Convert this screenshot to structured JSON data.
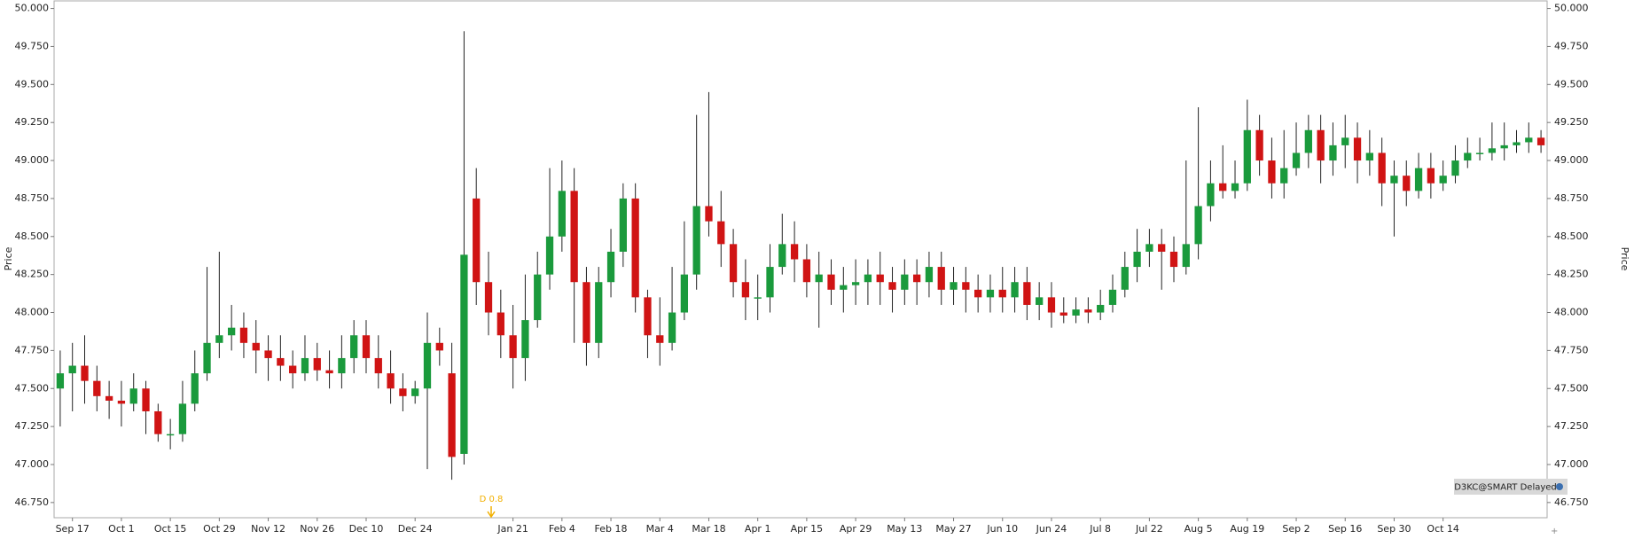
{
  "chart_data": {
    "type": "candlestick",
    "y_axis_label": "Price",
    "y2_axis_label": "Price",
    "annotation": "D 0.8",
    "badge": "D3KC@SMART Delayed",
    "up_color": "#1a9a3c",
    "down_color": "#d01414",
    "ylim": [
      46.65,
      50.05
    ],
    "yticks": [
      {
        "value": 46.75,
        "label": "46.750"
      },
      {
        "value": 47,
        "label": "47.000"
      },
      {
        "value": 47.25,
        "label": "47.250"
      },
      {
        "value": 47.5,
        "label": "47.500"
      },
      {
        "value": 47.75,
        "label": "47.750"
      },
      {
        "value": 48,
        "label": "48.000"
      },
      {
        "value": 48.25,
        "label": "48.250"
      },
      {
        "value": 48.5,
        "label": "48.500"
      },
      {
        "value": 48.75,
        "label": "48.750"
      },
      {
        "value": 49,
        "label": "49.000"
      },
      {
        "value": 49.25,
        "label": "49.250"
      },
      {
        "value": 49.5,
        "label": "49.500"
      },
      {
        "value": 49.75,
        "label": "49.750"
      },
      {
        "value": 50,
        "label": "50.000"
      }
    ],
    "categories": [
      null,
      "Sep 17",
      null,
      null,
      null,
      "Oct 1",
      null,
      null,
      null,
      "Oct 15",
      null,
      null,
      null,
      "Oct 29",
      null,
      null,
      null,
      "Nov 12",
      null,
      null,
      null,
      "Nov 26",
      null,
      null,
      null,
      "Dec 10",
      null,
      null,
      null,
      "Dec 24",
      null,
      null,
      null,
      null,
      null,
      null,
      null,
      "Jan 21",
      null,
      null,
      null,
      "Feb 4",
      null,
      null,
      null,
      "Feb 18",
      null,
      null,
      null,
      "Mar 4",
      null,
      null,
      null,
      "Mar 18",
      null,
      null,
      null,
      "Apr 1",
      null,
      null,
      null,
      "Apr 15",
      null,
      null,
      null,
      "Apr 29",
      null,
      null,
      null,
      "May 13",
      null,
      null,
      null,
      "May 27",
      null,
      null,
      null,
      "Jun 10",
      null,
      null,
      null,
      "Jun 24",
      null,
      null,
      null,
      "Jul 8",
      null,
      null,
      null,
      "Jul 22",
      null,
      null,
      null,
      "Aug 5",
      null,
      null,
      null,
      "Aug 19",
      null,
      null,
      null,
      "Sep 2",
      null,
      null,
      null,
      "Sep 16",
      null,
      null,
      null,
      "Sep 30",
      null,
      null,
      null,
      "Oct 14",
      null,
      null,
      null,
      null,
      null,
      null,
      null,
      null
    ],
    "open": [
      47.5,
      47.6,
      47.65,
      47.55,
      47.45,
      47.42,
      47.4,
      47.5,
      47.35,
      47.2,
      47.2,
      47.4,
      47.6,
      47.8,
      47.85,
      47.9,
      47.8,
      47.75,
      47.7,
      47.65,
      47.6,
      47.7,
      47.62,
      47.6,
      47.7,
      47.85,
      47.7,
      47.6,
      47.5,
      47.45,
      47.5,
      47.8,
      47.6,
      47.07,
      48.75,
      48.2,
      48.0,
      47.85,
      47.7,
      47.95,
      48.25,
      48.5,
      48.8,
      48.2,
      47.8,
      48.2,
      48.4,
      48.75,
      48.1,
      47.85,
      47.8,
      48.0,
      48.25,
      48.7,
      48.6,
      48.45,
      48.2,
      48.1,
      48.1,
      48.3,
      48.45,
      48.35,
      48.2,
      48.25,
      48.15,
      48.18,
      48.2,
      48.25,
      48.2,
      48.15,
      48.25,
      48.2,
      48.3,
      48.15,
      48.2,
      48.15,
      48.1,
      48.15,
      48.1,
      48.2,
      48.05,
      48.1,
      48.0,
      47.98,
      48.02,
      48.0,
      48.05,
      48.15,
      48.3,
      48.4,
      48.45,
      48.4,
      48.3,
      48.45,
      48.7,
      48.85,
      48.8,
      48.85,
      49.2,
      49.0,
      48.85,
      48.95,
      49.05,
      49.2,
      49.0,
      49.1,
      49.15,
      49.0,
      49.05,
      48.85,
      48.9,
      48.8,
      48.95,
      48.85,
      48.9,
      49.0,
      49.05,
      49.05,
      49.08,
      49.1,
      49.12,
      49.15
    ],
    "high": [
      47.75,
      47.8,
      47.85,
      47.65,
      47.55,
      47.55,
      47.6,
      47.55,
      47.4,
      47.3,
      47.55,
      47.75,
      48.3,
      48.4,
      48.05,
      48.0,
      47.95,
      47.85,
      47.85,
      47.75,
      47.85,
      47.8,
      47.75,
      47.85,
      47.95,
      47.95,
      47.85,
      47.75,
      47.6,
      47.55,
      48.0,
      47.9,
      47.8,
      49.85,
      48.95,
      48.4,
      48.15,
      48.05,
      48.25,
      48.4,
      48.95,
      49.0,
      48.95,
      48.3,
      48.3,
      48.55,
      48.85,
      48.85,
      48.15,
      48.1,
      48.3,
      48.6,
      49.3,
      49.45,
      48.8,
      48.55,
      48.35,
      48.25,
      48.45,
      48.65,
      48.6,
      48.45,
      48.4,
      48.35,
      48.3,
      48.35,
      48.35,
      48.4,
      48.3,
      48.35,
      48.35,
      48.4,
      48.4,
      48.3,
      48.3,
      48.25,
      48.25,
      48.3,
      48.3,
      48.3,
      48.2,
      48.2,
      48.1,
      48.1,
      48.1,
      48.15,
      48.25,
      48.4,
      48.55,
      48.55,
      48.55,
      48.5,
      49.0,
      49.35,
      49.0,
      49.1,
      49.0,
      49.4,
      49.3,
      49.15,
      49.2,
      49.25,
      49.3,
      49.3,
      49.25,
      49.3,
      49.25,
      49.2,
      49.15,
      49.0,
      49.0,
      49.05,
      49.05,
      49.0,
      49.1,
      49.15,
      49.15,
      49.25,
      49.25,
      49.2,
      49.25,
      49.2
    ],
    "low": [
      47.25,
      47.35,
      47.4,
      47.35,
      47.3,
      47.25,
      47.35,
      47.2,
      47.15,
      47.1,
      47.15,
      47.35,
      47.55,
      47.7,
      47.75,
      47.7,
      47.6,
      47.55,
      47.55,
      47.5,
      47.55,
      47.55,
      47.5,
      47.5,
      47.6,
      47.6,
      47.5,
      47.4,
      47.35,
      47.4,
      46.97,
      47.65,
      46.9,
      47.0,
      48.05,
      47.85,
      47.7,
      47.5,
      47.55,
      47.9,
      48.15,
      48.4,
      47.8,
      47.65,
      47.7,
      48.1,
      48.3,
      48.0,
      47.7,
      47.65,
      47.75,
      47.95,
      48.15,
      48.5,
      48.3,
      48.1,
      47.95,
      47.95,
      48.0,
      48.25,
      48.2,
      48.1,
      47.9,
      48.05,
      48.0,
      48.05,
      48.05,
      48.05,
      48.0,
      48.05,
      48.05,
      48.1,
      48.05,
      48.05,
      48.0,
      48.0,
      48.0,
      48.0,
      48.0,
      47.95,
      47.95,
      47.9,
      47.93,
      47.93,
      47.93,
      47.95,
      48.0,
      48.1,
      48.2,
      48.3,
      48.15,
      48.2,
      48.25,
      48.35,
      48.6,
      48.75,
      48.75,
      48.8,
      48.9,
      48.75,
      48.75,
      48.9,
      48.95,
      48.85,
      48.9,
      48.95,
      48.85,
      48.9,
      48.7,
      48.5,
      48.7,
      48.75,
      48.75,
      48.8,
      48.85,
      48.95,
      49.0,
      49.0,
      49.0,
      49.05,
      49.05,
      49.05
    ],
    "close": [
      47.6,
      47.65,
      47.55,
      47.45,
      47.42,
      47.4,
      47.5,
      47.35,
      47.2,
      47.2,
      47.4,
      47.6,
      47.8,
      47.85,
      47.9,
      47.8,
      47.75,
      47.7,
      47.65,
      47.6,
      47.7,
      47.62,
      47.6,
      47.7,
      47.85,
      47.7,
      47.6,
      47.5,
      47.45,
      47.5,
      47.8,
      47.75,
      47.05,
      48.38,
      48.2,
      48.0,
      47.85,
      47.7,
      47.95,
      48.25,
      48.5,
      48.8,
      48.2,
      47.8,
      48.2,
      48.4,
      48.75,
      48.1,
      47.85,
      47.8,
      48.0,
      48.25,
      48.7,
      48.6,
      48.45,
      48.2,
      48.1,
      48.1,
      48.3,
      48.45,
      48.35,
      48.2,
      48.25,
      48.15,
      48.18,
      48.2,
      48.25,
      48.2,
      48.15,
      48.25,
      48.2,
      48.3,
      48.15,
      48.2,
      48.15,
      48.1,
      48.15,
      48.1,
      48.2,
      48.05,
      48.1,
      48.0,
      47.98,
      48.02,
      48.0,
      48.05,
      48.15,
      48.3,
      48.4,
      48.45,
      48.4,
      48.3,
      48.45,
      48.7,
      48.85,
      48.8,
      48.85,
      49.2,
      49.0,
      48.85,
      48.95,
      49.05,
      49.2,
      49.0,
      49.1,
      49.15,
      49.0,
      49.05,
      48.85,
      48.9,
      48.8,
      48.95,
      48.85,
      48.9,
      49.0,
      49.05,
      49.05,
      49.08,
      49.1,
      49.12,
      49.15,
      49.1
    ]
  }
}
